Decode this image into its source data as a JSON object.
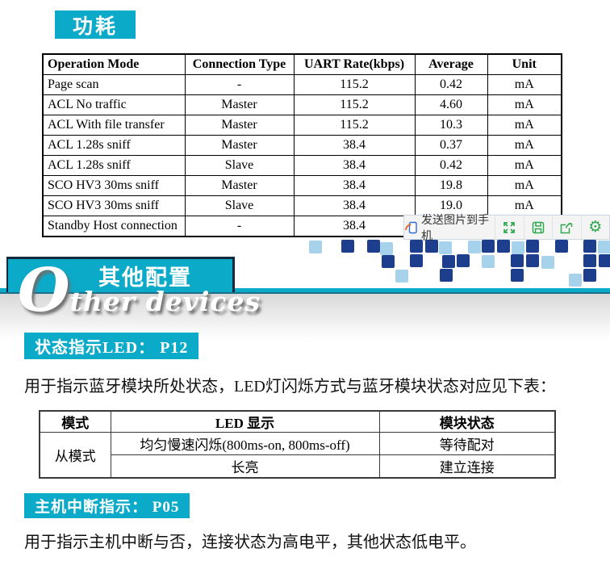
{
  "colors": {
    "teal": "#0caac9",
    "dark_border": "#16293a",
    "square_dark": "#1c3e8c",
    "square_light": "#a6d2ec",
    "toolbar_green": "#2fa84f"
  },
  "sections": {
    "power_title": "功耗",
    "other_title_zh": "其他配置",
    "other_title_en_initial": "O",
    "other_title_en_rest": "ther devices"
  },
  "power_table": {
    "headers": [
      "Operation Mode",
      "Connection Type",
      "UART Rate(kbps)",
      "Average",
      "Unit"
    ],
    "rows": [
      [
        "Page scan",
        "-",
        "115.2",
        "0.42",
        "mA"
      ],
      [
        "ACL No traffic",
        "Master",
        "115.2",
        "4.60",
        "mA"
      ],
      [
        "ACL With file transfer",
        "Master",
        "115.2",
        "10.3",
        "mA"
      ],
      [
        "ACL 1.28s sniff",
        "Master",
        "38.4",
        "0.37",
        "mA"
      ],
      [
        "ACL 1.28s sniff",
        "Slave",
        "38.4",
        "0.42",
        "mA"
      ],
      [
        "SCO HV3 30ms sniff",
        "Master",
        "38.4",
        "19.8",
        "mA"
      ],
      [
        "SCO HV3 30ms sniff",
        "Slave",
        "38.4",
        "19.0",
        "mA"
      ],
      [
        "Standby Host connection",
        "-",
        "38.4",
        "",
        ""
      ]
    ]
  },
  "toolbar": {
    "send_label": "发送图片到手机",
    "gear_glyph": "⚙",
    "icon_names": [
      "send-to-phone",
      "expand",
      "save",
      "share",
      "settings"
    ]
  },
  "led_section": {
    "badge": "状态指示LED： P12",
    "paragraph": "用于指示蓝牙模块所处状态，LED灯闪烁方式与蓝牙模块状态对应见下表：",
    "table": {
      "headers": [
        "模式",
        "LED 显示",
        "模块状态"
      ],
      "rows": [
        [
          {
            "t": "从模式",
            "rs": 2
          },
          {
            "t": "均匀慢速闪烁(800ms-on, 800ms-off)"
          },
          {
            "t": "等待配对"
          }
        ],
        [
          {
            "t": "长亮"
          },
          {
            "t": "建立连接"
          }
        ]
      ]
    }
  },
  "host_section": {
    "badge": "主机中断指示： P05",
    "paragraph": "用于指示主机中断与否，连接状态为高电平，其他状态低电平。"
  },
  "decor": {
    "squares": [
      [
        383,
        298,
        "l"
      ],
      [
        423,
        297,
        "d"
      ],
      [
        455,
        297,
        "d"
      ],
      [
        471,
        300,
        "l"
      ],
      [
        508,
        297,
        "d"
      ],
      [
        527,
        297,
        "d"
      ],
      [
        544,
        299,
        "l"
      ],
      [
        580,
        298,
        "l"
      ],
      [
        597,
        297,
        "d"
      ],
      [
        616,
        297,
        "d"
      ],
      [
        634,
        299,
        "l"
      ],
      [
        652,
        297,
        "d"
      ],
      [
        688,
        297,
        "d"
      ],
      [
        723,
        297,
        "d"
      ],
      [
        741,
        298,
        "l"
      ],
      [
        473,
        316,
        "d"
      ],
      [
        508,
        315,
        "d"
      ],
      [
        548,
        316,
        "d"
      ],
      [
        566,
        315,
        "d"
      ],
      [
        597,
        316,
        "l"
      ],
      [
        633,
        315,
        "d"
      ],
      [
        652,
        315,
        "d"
      ],
      [
        671,
        317,
        "l"
      ],
      [
        723,
        315,
        "d"
      ],
      [
        742,
        315,
        "d"
      ],
      [
        490,
        334,
        "l"
      ],
      [
        545,
        333,
        "d"
      ],
      [
        633,
        333,
        "d"
      ],
      [
        723,
        333,
        "d"
      ],
      [
        705,
        339,
        "l"
      ]
    ]
  }
}
